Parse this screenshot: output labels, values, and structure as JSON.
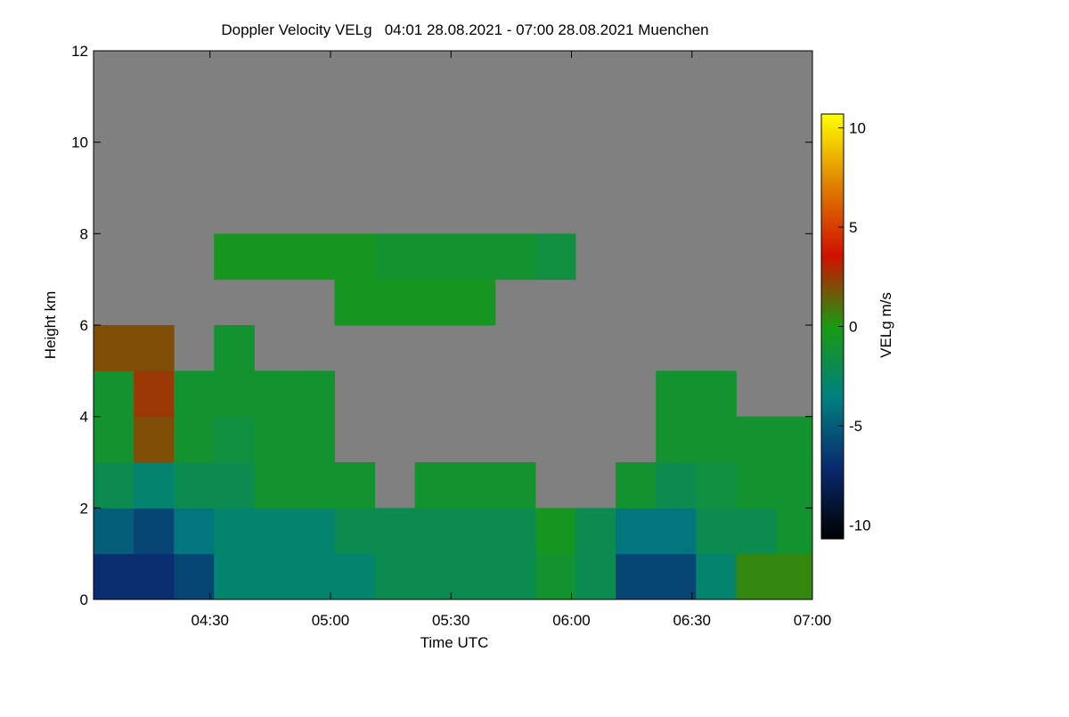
{
  "chart_data": {
    "type": "heatmap",
    "title": "Doppler Velocity VELg   04:01 28.08.2021 - 07:00 28.08.2021 Muenchen",
    "xlabel": "Time UTC",
    "ylabel": "Height km",
    "colorbar_label": "VELg m/s",
    "x": [
      246,
      256,
      266,
      276,
      286,
      296,
      306,
      316,
      326,
      336,
      346,
      356,
      366,
      376,
      386,
      396,
      406,
      416
    ],
    "y": [
      0.5,
      1.5,
      2.5,
      3.5,
      4.5,
      5.5,
      6.5,
      7.5,
      8.5,
      9.5,
      10.5,
      11.5
    ],
    "z": [
      [
        -7,
        -7,
        -6,
        -3,
        -3,
        -3,
        -3,
        -2,
        -2,
        -2,
        -2,
        -1,
        -2,
        -6,
        -6,
        -3,
        0.5,
        0.5
      ],
      [
        -5,
        -6,
        -4,
        -3,
        -3,
        -3,
        -2,
        -2,
        -2,
        -2,
        -2,
        -0.5,
        -2,
        -4,
        -4,
        -2,
        -2,
        -1
      ],
      [
        -2,
        -3,
        -2,
        -2,
        -1,
        -1,
        -1,
        null,
        -1,
        -1,
        -1,
        null,
        null,
        -1,
        -2,
        -1.5,
        -1,
        -1
      ],
      [
        -1,
        2,
        -1,
        -1.5,
        -1,
        -1,
        null,
        null,
        null,
        null,
        null,
        null,
        null,
        null,
        -1,
        -1,
        -1,
        -1
      ],
      [
        -1,
        2.5,
        -1,
        -1,
        -1,
        -1,
        null,
        null,
        null,
        null,
        null,
        null,
        null,
        null,
        -1,
        -1,
        null,
        null
      ],
      [
        2,
        2,
        null,
        -1,
        null,
        null,
        null,
        null,
        null,
        null,
        null,
        null,
        null,
        null,
        null,
        null,
        null,
        null
      ],
      [
        null,
        null,
        null,
        null,
        null,
        null,
        -0.5,
        -0.5,
        -0.5,
        -0.5,
        null,
        null,
        null,
        null,
        null,
        null,
        null,
        null
      ],
      [
        null,
        null,
        null,
        -0.5,
        -0.5,
        -0.5,
        -0.5,
        -1,
        -1,
        -1,
        -1,
        -1.5,
        null,
        null,
        null,
        null,
        null,
        null
      ],
      [
        null,
        null,
        null,
        null,
        null,
        null,
        null,
        null,
        null,
        null,
        null,
        null,
        null,
        null,
        null,
        null,
        null,
        null
      ],
      [
        null,
        null,
        null,
        null,
        null,
        null,
        null,
        null,
        null,
        null,
        null,
        null,
        null,
        null,
        null,
        null,
        null,
        null
      ],
      [
        null,
        null,
        null,
        null,
        null,
        null,
        null,
        null,
        null,
        null,
        null,
        null,
        null,
        null,
        null,
        null,
        null,
        null
      ],
      [
        null,
        null,
        null,
        null,
        null,
        null,
        null,
        null,
        null,
        null,
        null,
        null,
        null,
        null,
        null,
        null,
        null,
        null
      ]
    ],
    "xlim": [
      241,
      420
    ],
    "xticks": [
      {
        "value": 270,
        "label": "04:30"
      },
      {
        "value": 300,
        "label": "05:00"
      },
      {
        "value": 330,
        "label": "05:30"
      },
      {
        "value": 360,
        "label": "06:00"
      },
      {
        "value": 390,
        "label": "06:30"
      },
      {
        "value": 420,
        "label": "07:00"
      }
    ],
    "ylim": [
      0,
      12
    ],
    "yticks": [
      0,
      2,
      4,
      6,
      8,
      10,
      12
    ],
    "zlim": [
      -10.7,
      10.7
    ],
    "zticks": [
      -10,
      -5,
      0,
      5,
      10
    ],
    "colormap": [
      "#000000",
      "#0a2a6e",
      "#008080",
      "#1a9a10",
      "#d01000",
      "#e08000",
      "#ffff00"
    ],
    "missing_color": "#808080"
  }
}
